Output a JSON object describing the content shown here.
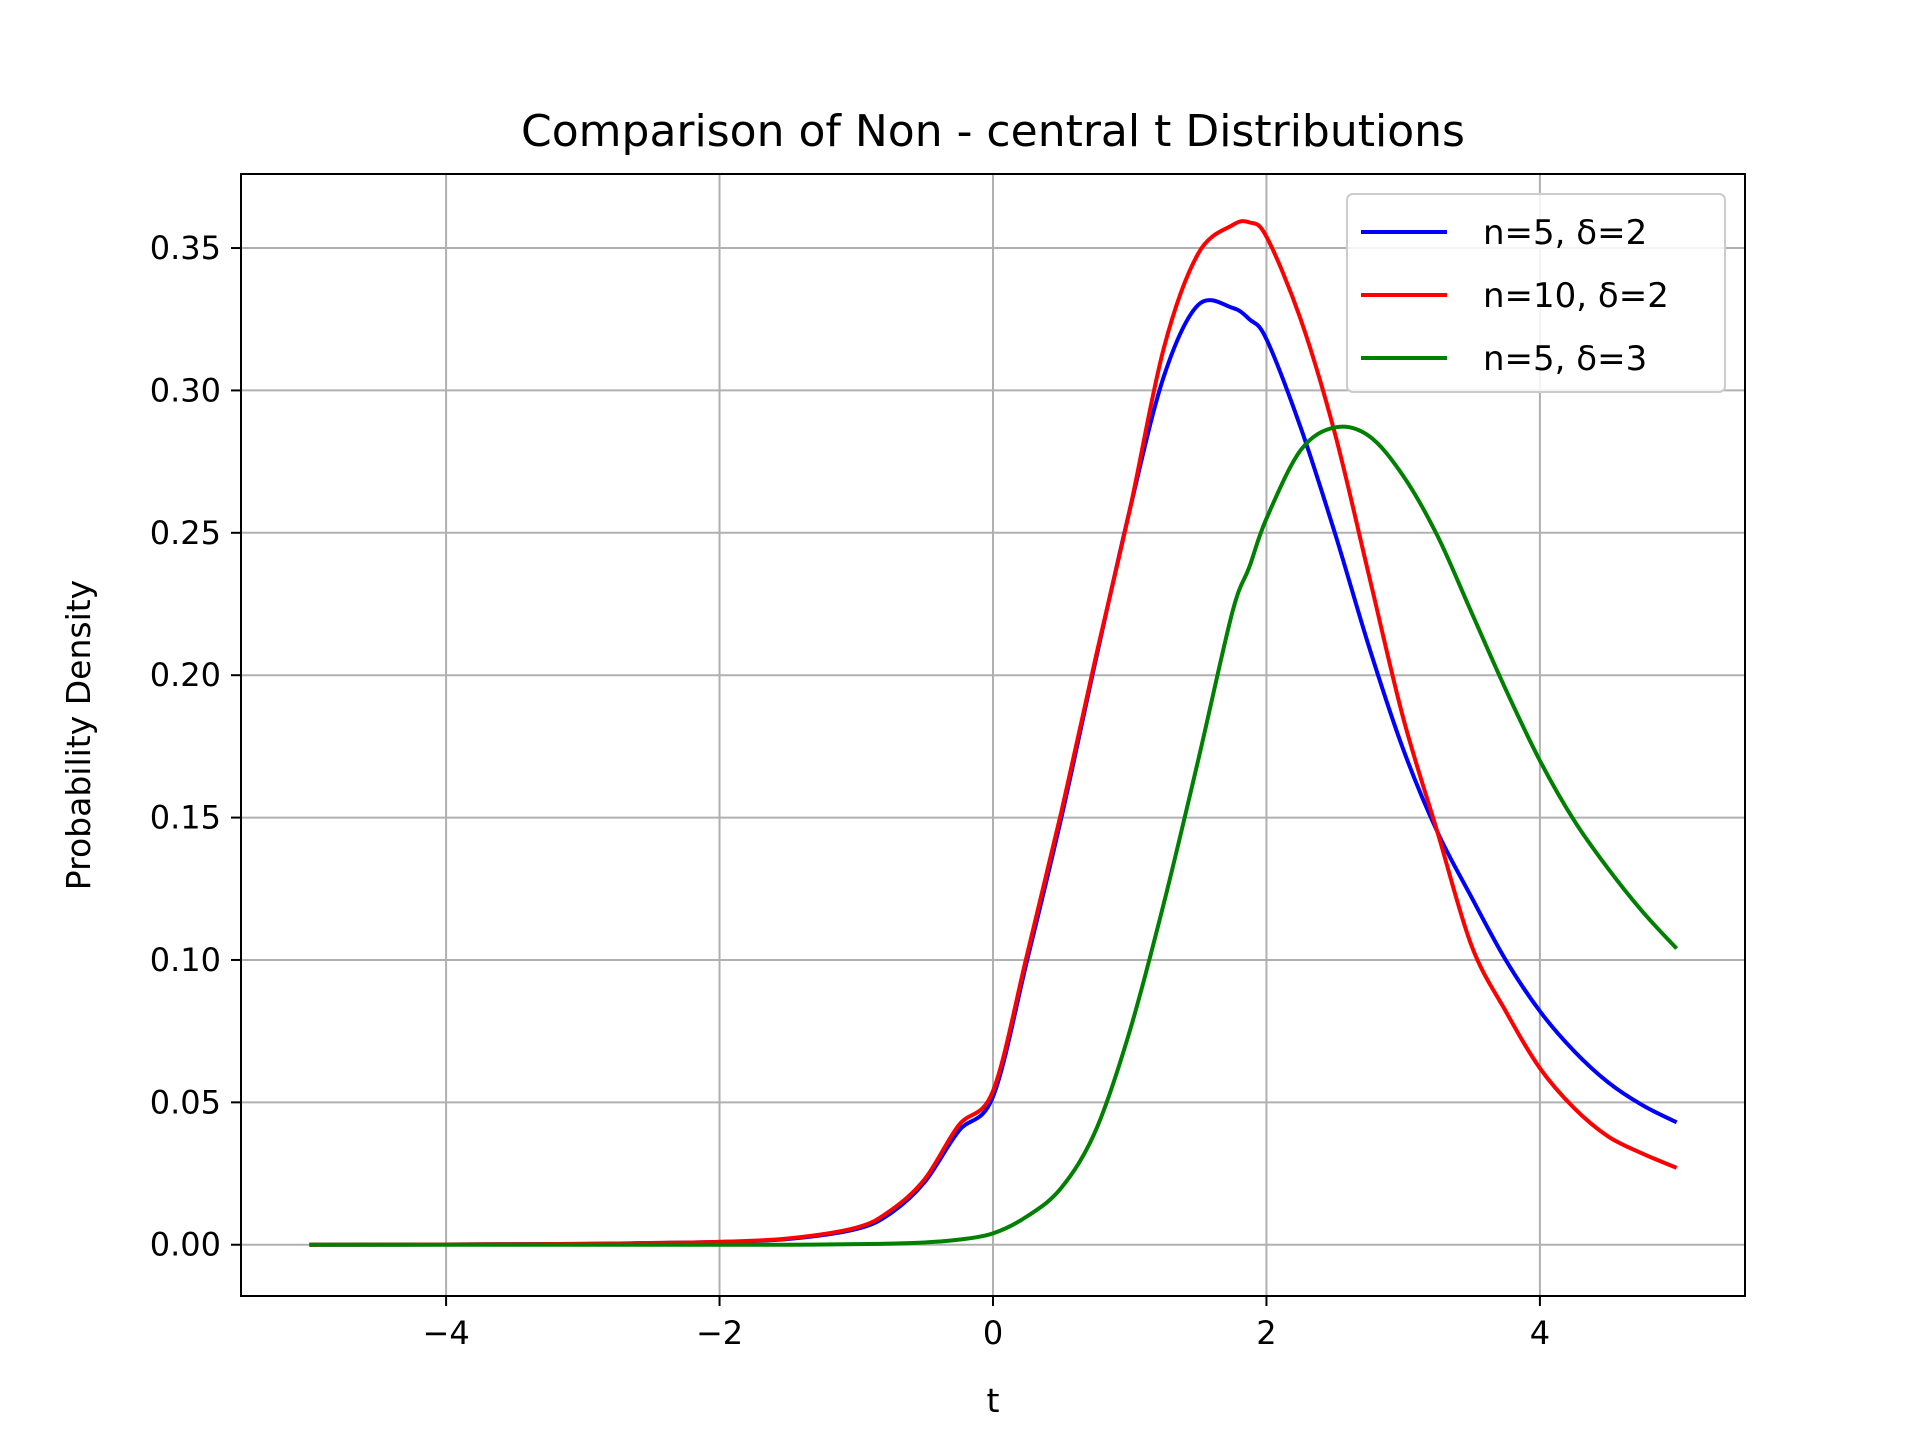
{
  "chart_data": {
    "type": "line",
    "title": "Comparison of Non - central t Distributions",
    "xlabel": "t",
    "ylabel": "Probability Density",
    "xlim": [
      -5.5,
      5.5
    ],
    "ylim": [
      -0.018,
      0.376
    ],
    "xticks": [
      -4,
      -2,
      0,
      2,
      4
    ],
    "xtick_labels": [
      "−4",
      "−2",
      "0",
      "2",
      "4"
    ],
    "yticks": [
      0.0,
      0.05,
      0.1,
      0.15,
      0.2,
      0.25,
      0.3,
      0.35
    ],
    "ytick_labels": [
      "0.00",
      "0.05",
      "0.10",
      "0.15",
      "0.20",
      "0.25",
      "0.30",
      "0.35"
    ],
    "grid": true,
    "legend_position": "top-right",
    "x": [
      -5.0,
      -4.0,
      -3.0,
      -2.5,
      -2.0,
      -1.5,
      -1.0,
      -0.75,
      -0.5,
      -0.25,
      0.0,
      0.25,
      0.5,
      0.75,
      1.0,
      1.25,
      1.5,
      1.75,
      1.875,
      2.0,
      2.25,
      2.5,
      2.75,
      3.0,
      3.25,
      3.5,
      3.75,
      4.0,
      4.25,
      4.5,
      4.75,
      5.0
    ],
    "series": [
      {
        "name": "n=5, δ=2",
        "color": "#0000ff",
        "values": [
          0.0,
          0.0001,
          0.0003,
          0.0006,
          0.001,
          0.002,
          0.0055,
          0.011,
          0.022,
          0.04,
          0.052,
          0.1,
          0.15,
          0.205,
          0.258,
          0.305,
          0.33,
          0.329,
          0.325,
          0.318,
          0.287,
          0.25,
          0.21,
          0.174,
          0.145,
          0.122,
          0.1,
          0.082,
          0.068,
          0.057,
          0.049,
          0.043
        ]
      },
      {
        "name": "n=10, δ=2",
        "color": "#ff0000",
        "values": [
          0.0,
          0.0001,
          0.0003,
          0.0006,
          0.001,
          0.0022,
          0.006,
          0.012,
          0.023,
          0.042,
          0.054,
          0.102,
          0.152,
          0.206,
          0.258,
          0.315,
          0.348,
          0.358,
          0.359,
          0.354,
          0.325,
          0.285,
          0.235,
          0.185,
          0.145,
          0.105,
          0.082,
          0.062,
          0.048,
          0.038,
          0.032,
          0.027
        ]
      },
      {
        "name": "n=5, δ=3",
        "color": "#008000",
        "values": [
          0.0,
          0.0,
          0.0,
          0.0,
          0.0,
          0.0,
          0.0002,
          0.0004,
          0.0008,
          0.0018,
          0.004,
          0.01,
          0.02,
          0.04,
          0.075,
          0.12,
          0.17,
          0.222,
          0.238,
          0.255,
          0.279,
          0.287,
          0.284,
          0.27,
          0.249,
          0.222,
          0.195,
          0.17,
          0.149,
          0.132,
          0.117,
          0.104
        ]
      }
    ]
  }
}
